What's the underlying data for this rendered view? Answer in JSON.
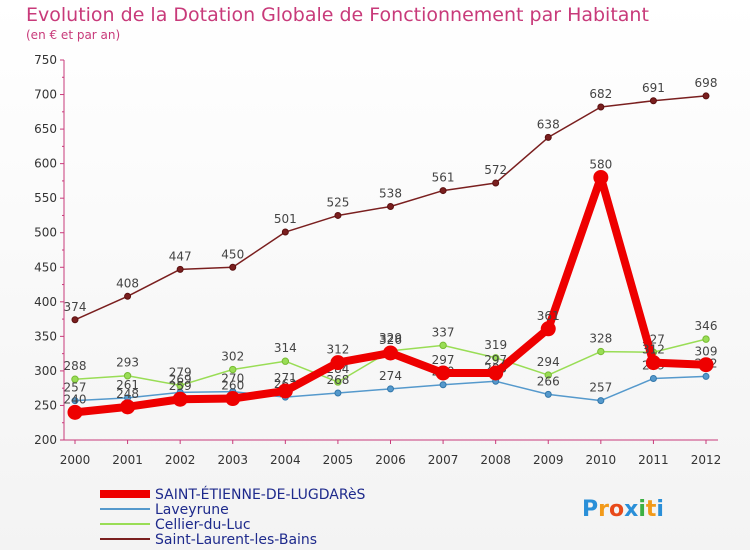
{
  "chart_data": {
    "type": "line",
    "title": "Evolution de la Dotation Globale de Fonctionnement par Habitant",
    "subtitle": "(en € et par an)",
    "xlabel": "",
    "ylabel": "",
    "categories": [
      "2000",
      "2001",
      "2002",
      "2003",
      "2004",
      "2005",
      "2006",
      "2007",
      "2008",
      "2009",
      "2010",
      "2011",
      "2012"
    ],
    "yticks": [
      "200",
      "250",
      "300",
      "350",
      "400",
      "450",
      "500",
      "550",
      "600",
      "650",
      "700",
      "750"
    ],
    "ylim": [
      200,
      750
    ],
    "grid": false,
    "legend_position": "bottom-left",
    "series": [
      {
        "name": "Saint-Laurent-les-Bains",
        "color": "#7a1f1f",
        "values": [
          374,
          408,
          447,
          450,
          501,
          525,
          538,
          561,
          572,
          638,
          682,
          691,
          698
        ],
        "labels": [
          "374",
          "408",
          "447",
          "450",
          "501",
          "525",
          "538",
          "561",
          "572",
          "638",
          "682",
          "691",
          "698"
        ]
      },
      {
        "name": "Cellier-du-Luc",
        "color": "#99dd55",
        "values": [
          288,
          293,
          279,
          302,
          314,
          284,
          329,
          337,
          319,
          294,
          328,
          327,
          346
        ],
        "labels": [
          "288",
          "293",
          "279",
          "302",
          "314",
          "284",
          "329",
          "337",
          "319",
          "294",
          "328",
          "327",
          "346"
        ]
      },
      {
        "name": "Laveyrune",
        "color": "#5599cc",
        "values": [
          257,
          261,
          269,
          270,
          262,
          268,
          274,
          280,
          285,
          266,
          257,
          289,
          292
        ],
        "labels": [
          "257",
          "261",
          "269",
          "270",
          "262",
          "268",
          "274",
          "280",
          "285",
          "266",
          "257",
          "289",
          "292"
        ]
      },
      {
        "name": "SAINT-ÉTIENNE-DE-LUGDARèS",
        "color": "#ee0000",
        "values": [
          240,
          248,
          259,
          260,
          271,
          312,
          326,
          297,
          297,
          361,
          580,
          312,
          309
        ],
        "labels": [
          "240",
          "248",
          "259",
          "260",
          "271",
          "312",
          "326",
          "297",
          "297",
          "361",
          "580",
          "312",
          "309"
        ]
      }
    ]
  },
  "legend": {
    "items": [
      {
        "label": "SAINT-ÉTIENNE-DE-LUGDARèS",
        "color": "#ee0000"
      },
      {
        "label": "Laveyrune",
        "color": "#5599cc"
      },
      {
        "label": "Cellier-du-Luc",
        "color": "#99dd55"
      },
      {
        "label": "Saint-Laurent-les-Bains",
        "color": "#7a1f1f"
      }
    ]
  },
  "logo": {
    "letters": [
      "P",
      "r",
      "o",
      "x",
      "i",
      "t",
      "i"
    ],
    "colors": [
      "#2a8fd8",
      "#f29a1a",
      "#e84a1a",
      "#2a8fd8",
      "#3cb043",
      "#f29a1a",
      "#2a8fd8"
    ]
  }
}
